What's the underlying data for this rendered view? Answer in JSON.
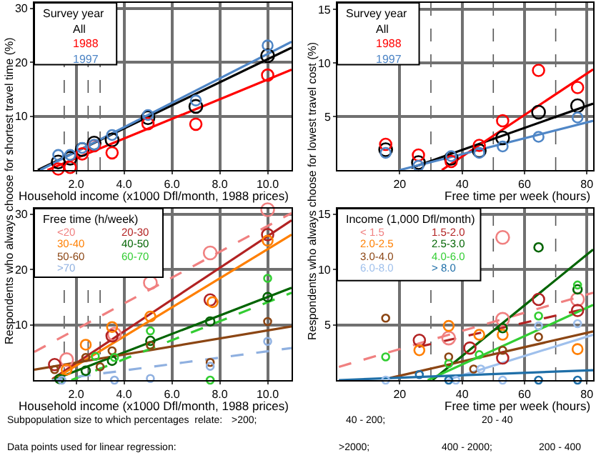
{
  "chart_data": [
    {
      "type": "scatter",
      "xlabel": "Household income (x1000 Dfl/month, 1988 prices)",
      "ylabel": "Respondents who always choose for shortest travel time (%)",
      "legend_title": "Survey year",
      "legend": "top left",
      "grid": true,
      "xlim": [
        0.25,
        11
      ],
      "ylim": [
        0,
        31
      ],
      "xticks": [
        {
          "value": 2,
          "label": "2.0"
        },
        {
          "value": 4,
          "label": "4.0"
        },
        {
          "value": 6,
          "label": "6.0"
        },
        {
          "value": 8,
          "label": "8.0"
        },
        {
          "value": 10,
          "label": "10.0"
        }
      ],
      "yticks": [
        10,
        20,
        30
      ],
      "ref_lines": [
        {
          "axis": "x",
          "value": 1.5,
          "line_style": "dashed",
          "color": "#555555"
        },
        {
          "axis": "x",
          "value": 2.5,
          "line_style": "dashed",
          "color": "#555555"
        },
        {
          "axis": "x",
          "value": 3.0,
          "line_style": "dashed",
          "color": "#555555"
        }
      ],
      "series": [
        {
          "type": "line",
          "marker": "none",
          "line_style": "solid",
          "color": "#000000",
          "x": [
            0.4,
            11
          ],
          "values": [
            0,
            22.7
          ]
        },
        {
          "type": "line",
          "marker": "none",
          "line_style": "solid",
          "color": "#ff0000",
          "x": [
            0.8,
            11
          ],
          "values": [
            0,
            18.6
          ]
        },
        {
          "type": "line",
          "marker": "none",
          "line_style": "solid",
          "color": "#4f86c6",
          "x": [
            0.5,
            11
          ],
          "values": [
            0,
            23.8
          ]
        },
        {
          "type": "scatter",
          "marker": "circle",
          "name": "All",
          "color": "#000000",
          "x": [
            1.25,
            1.75,
            2.25,
            2.75,
            3.5,
            5.0,
            7.0,
            10.0
          ],
          "values": [
            1.5,
            2.2,
            3.8,
            5.0,
            5.6,
            9.7,
            11.8,
            21.2
          ]
        },
        {
          "type": "scatter",
          "marker": "circle",
          "name": "1988",
          "color": "#ff0000",
          "x": [
            1.25,
            1.75,
            2.25,
            2.75,
            3.5,
            5.0,
            7.0,
            10.0
          ],
          "values": [
            0.2,
            0.5,
            3.0,
            4.5,
            3.2,
            8.6,
            8.5,
            17.6
          ]
        },
        {
          "type": "scatter",
          "marker": "circle",
          "name": "1997",
          "color": "#4f86c6",
          "x": [
            1.25,
            1.75,
            2.25,
            2.75,
            3.5,
            5.0,
            7.0,
            10.0
          ],
          "values": [
            2.8,
            2.8,
            4.1,
            4.7,
            6.5,
            10.2,
            12.9,
            23.1
          ]
        }
      ]
    },
    {
      "type": "scatter",
      "xlabel": "Free time per week (hours)",
      "ylabel": "Respondents who always choose for lowest travel cost (%)",
      "legend_title": "Survey year",
      "legend": "top left",
      "grid": true,
      "xlim": [
        0,
        82
      ],
      "ylim": [
        0,
        15.6
      ],
      "xticks": [
        20,
        40,
        60,
        80
      ],
      "yticks": [
        5,
        10,
        15
      ],
      "ref_lines": [
        {
          "axis": "x",
          "value": 30,
          "line_style": "dashed",
          "color": "#555555"
        },
        {
          "axis": "x",
          "value": 50,
          "line_style": "dashed",
          "color": "#555555"
        },
        {
          "axis": "x",
          "value": 70,
          "line_style": "dashed",
          "color": "#555555"
        }
      ],
      "series": [
        {
          "type": "line",
          "marker": "none",
          "line_style": "solid",
          "color": "#000000",
          "x": [
            23.7,
            82
          ],
          "values": [
            0.2,
            6.2
          ]
        },
        {
          "type": "line",
          "marker": "none",
          "line_style": "solid",
          "color": "#ff0000",
          "x": [
            33.5,
            82
          ],
          "values": [
            0,
            9.4
          ]
        },
        {
          "type": "line",
          "marker": "none",
          "line_style": "solid",
          "color": "#4f86c6",
          "x": [
            20,
            82
          ],
          "values": [
            0,
            4.6
          ]
        },
        {
          "type": "scatter",
          "marker": "circle",
          "name": "All",
          "color": "#000000",
          "x": [
            15.5,
            26,
            36.5,
            45.5,
            53,
            64.5,
            77
          ],
          "values": [
            1.9,
            0.7,
            1.1,
            1.8,
            3.0,
            5.4,
            6.0
          ]
        },
        {
          "type": "scatter",
          "marker": "circle",
          "name": "1988",
          "color": "#ff0000",
          "x": [
            15.5,
            26,
            36.5,
            45.5,
            53,
            64.5,
            77
          ],
          "values": [
            2.4,
            1.4,
            0.8,
            2.3,
            4.6,
            9.3,
            7.7
          ]
        },
        {
          "type": "scatter",
          "marker": "circle",
          "name": "1997",
          "color": "#4f86c6",
          "x": [
            15.5,
            26,
            36.5,
            45.5,
            53,
            64.5,
            77
          ],
          "values": [
            1.6,
            0.4,
            1.3,
            1.6,
            2.2,
            3.1,
            4.9
          ]
        }
      ]
    },
    {
      "type": "scatter",
      "xlabel": "Household income (x1000 Dfl/month, 1988 prices)",
      "legend_title": "Free time (h/week)",
      "legend": "top left",
      "grid": true,
      "xlim": [
        0.25,
        11
      ],
      "ylim": [
        0,
        31
      ],
      "xticks": [
        {
          "value": 2,
          "label": "2.0"
        },
        {
          "value": 4,
          "label": "4.0"
        },
        {
          "value": 6,
          "label": "6.0"
        },
        {
          "value": 8,
          "label": "8.0"
        },
        {
          "value": 10,
          "label": "10.0"
        }
      ],
      "yticks": [
        10,
        20,
        30
      ],
      "ref_lines": [
        {
          "axis": "x",
          "value": 1.5,
          "line_style": "dashed",
          "color": "#555555"
        },
        {
          "axis": "x",
          "value": 2.5,
          "line_style": "dashed",
          "color": "#555555"
        },
        {
          "axis": "x",
          "value": 3.0,
          "line_style": "dashed",
          "color": "#555555"
        }
      ],
      "series": [
        {
          "type": "line",
          "marker": "none",
          "line_style": "dashed",
          "color": "#f08080",
          "x": [
            0.25,
            11
          ],
          "values": [
            5.1,
            30.2
          ]
        },
        {
          "type": "line",
          "marker": "none",
          "line_style": "solid",
          "color": "#b22222",
          "x": [
            1,
            11
          ],
          "values": [
            0.2,
            28.9
          ]
        },
        {
          "type": "line",
          "marker": "none",
          "line_style": "solid",
          "color": "#ff7f00",
          "x": [
            1,
            11
          ],
          "values": [
            0,
            26.3
          ]
        },
        {
          "type": "line",
          "marker": "none",
          "line_style": "solid",
          "color": "#006400",
          "x": [
            1,
            11
          ],
          "values": [
            0,
            16.7
          ]
        },
        {
          "type": "line",
          "marker": "none",
          "line_style": "solid",
          "color": "#8b4513",
          "x": [
            0.25,
            11
          ],
          "values": [
            1.9,
            9.7
          ]
        },
        {
          "type": "line",
          "marker": "none",
          "line_style": "dashed",
          "color": "#32cd32",
          "x": [
            1.8,
            11
          ],
          "values": [
            0,
            15.8
          ]
        },
        {
          "type": "line",
          "marker": "none",
          "line_style": "dashed",
          "color": "#8fb0e0",
          "x": [
            1,
            11
          ],
          "values": [
            0,
            5.8
          ]
        },
        {
          "type": "scatter",
          "marker": "circle",
          "name": "<20",
          "color": "#f08080",
          "x": [
            1.6,
            3.6,
            5.1,
            7.6,
            10
          ],
          "values": [
            3.7,
            8.3,
            17.6,
            23.0,
            30.8
          ]
        },
        {
          "type": "scatter",
          "marker": "circle",
          "name": "20-30",
          "color": "#b22222",
          "x": [
            1.1,
            3.5,
            7.6,
            10
          ],
          "values": [
            2.8,
            8.0,
            14.5,
            26.3
          ]
        },
        {
          "type": "scatter",
          "marker": "circle",
          "name": "30-40",
          "color": "#ff7f00",
          "x": [
            1.6,
            2.4,
            3.5,
            5.1,
            7.7,
            10
          ],
          "values": [
            1.9,
            6.4,
            9.6,
            11.5,
            14.1,
            25.2
          ]
        },
        {
          "type": "scatter",
          "marker": "circle",
          "name": "40-50",
          "color": "#006400",
          "x": [
            1.3,
            2.4,
            3.5,
            5.1,
            7.6,
            10
          ],
          "values": [
            0.2,
            1.7,
            3.5,
            7.1,
            10.6,
            15.0
          ]
        },
        {
          "type": "scatter",
          "marker": "circle",
          "name": "50-60",
          "color": "#8b4513",
          "x": [
            1.1,
            2.4,
            3.0,
            3.5,
            5.1,
            7.6,
            10
          ],
          "values": [
            1.9,
            4.1,
            2.4,
            5.3,
            6.3,
            3.2,
            10.6
          ]
        },
        {
          "type": "scatter",
          "marker": "circle",
          "name": "60-70",
          "color": "#32cd32",
          "x": [
            2.8,
            3.6,
            5.1,
            7.6,
            10
          ],
          "values": [
            4.3,
            4.1,
            8.9,
            0,
            18.4
          ]
        },
        {
          "type": "scatter",
          "marker": "circle",
          "name": ">70",
          "color": "#8fb0e0",
          "x": [
            1.4,
            3.6,
            5.1,
            7.6,
            10
          ],
          "values": [
            0,
            0,
            0.3,
            2.5,
            7.0
          ]
        }
      ]
    },
    {
      "type": "scatter",
      "xlabel": "Free time per week (hours)",
      "legend_title": "Income (1,000 Dfl/month)",
      "legend": "top left",
      "grid": true,
      "xlim": [
        0,
        82
      ],
      "ylim": [
        0,
        15.5
      ],
      "xticks": [
        20,
        40,
        60,
        80
      ],
      "yticks": [
        5,
        10,
        15
      ],
      "ref_lines": [
        {
          "axis": "x",
          "value": 30,
          "line_style": "dashed",
          "color": "#555555"
        },
        {
          "axis": "x",
          "value": 50,
          "line_style": "dashed",
          "color": "#555555"
        },
        {
          "axis": "x",
          "value": 70,
          "line_style": "dashed",
          "color": "#555555"
        }
      ],
      "series": [
        {
          "type": "line",
          "marker": "none",
          "line_style": "dashed",
          "color": "#f08080",
          "x": [
            0.5,
            82
          ],
          "values": [
            1.2,
            7.9
          ]
        },
        {
          "type": "line",
          "marker": "none",
          "line_style": "dashed",
          "color": "#b22222",
          "x": [
            26,
            82
          ],
          "values": [
            3.0,
            6.6
          ]
        },
        {
          "type": "line",
          "marker": "none",
          "line_style": "solid",
          "color": "#006400",
          "x": [
            30.5,
            82
          ],
          "values": [
            0,
            11.8
          ]
        },
        {
          "type": "line",
          "marker": "none",
          "line_style": "solid",
          "color": "#8b4513",
          "x": [
            17,
            82
          ],
          "values": [
            0.2,
            4.4
          ]
        },
        {
          "type": "line",
          "marker": "none",
          "line_style": "solid",
          "color": "#32cd32",
          "x": [
            29,
            82
          ],
          "values": [
            0,
            6.8
          ]
        },
        {
          "type": "line",
          "marker": "none",
          "line_style": "solid",
          "color": "#9fc0ec",
          "x": [
            35,
            82
          ],
          "values": [
            0,
            4.1
          ]
        },
        {
          "type": "line",
          "marker": "none",
          "line_style": "solid",
          "color": "#1f6fa8",
          "x": [
            0.5,
            82
          ],
          "values": [
            0,
            0.9
          ]
        },
        {
          "type": "scatter",
          "marker": "circle",
          "name": "< 1.5",
          "color": "#f08080",
          "x": [
            35.7,
            53,
            53,
            77
          ],
          "values": [
            3.8,
            5.5,
            12.9,
            7.3
          ]
        },
        {
          "type": "scatter",
          "marker": "circle",
          "name": "1.5-2.0",
          "color": "#b22222",
          "x": [
            26.3,
            42.5,
            53,
            64.5,
            77
          ],
          "values": [
            3.6,
            2.9,
            2.0,
            7.3,
            6.3
          ]
        },
        {
          "type": "scatter",
          "marker": "circle",
          "name": "2.0-2.5",
          "color": "#ff7f00",
          "x": [
            26.3,
            35.7,
            45.5,
            53,
            77
          ],
          "values": [
            2.7,
            4.9,
            4.1,
            4.1,
            2.8
          ]
        },
        {
          "type": "scatter",
          "marker": "circle",
          "name": "2.5-3.0",
          "color": "#006400",
          "x": [
            53,
            64.5,
            77
          ],
          "values": [
            4.7,
            12.0,
            8.2
          ]
        },
        {
          "type": "scatter",
          "marker": "circle",
          "name": "3.0-4.0",
          "color": "#8b4513",
          "x": [
            15.5,
            35.7,
            43.7,
            53,
            64.5
          ],
          "values": [
            5.6,
            2.1,
            1.0,
            2.7,
            3.9
          ]
        },
        {
          "type": "scatter",
          "marker": "circle",
          "name": "4.0-6.0",
          "color": "#32cd32",
          "x": [
            15.5,
            35.7,
            45.5,
            64.5,
            77
          ],
          "values": [
            2.1,
            1.5,
            2.3,
            5.8,
            8.6
          ]
        },
        {
          "type": "scatter",
          "marker": "circle",
          "name": "6.0-8.0",
          "color": "#9fc0ec",
          "x": [
            15.5,
            38,
            46,
            53,
            64.5,
            77
          ],
          "values": [
            0,
            0,
            1.0,
            0,
            4.9,
            5.1
          ]
        },
        {
          "type": "scatter",
          "marker": "circle",
          "name": "> 8.0",
          "color": "#1f6fa8",
          "x": [
            26.3,
            35.7,
            64.5,
            77
          ],
          "values": [
            0.5,
            0,
            0,
            0
          ]
        }
      ]
    },
    {
      "type": "other",
      "annotations": [
        "Subpopulation size to which percentages  relate:",
        ">200;",
        "40 - 200;",
        "20 - 40",
        "Data points used for linear regression:",
        ">2000;",
        "400 - 2000;",
        "200 - 400"
      ]
    }
  ]
}
